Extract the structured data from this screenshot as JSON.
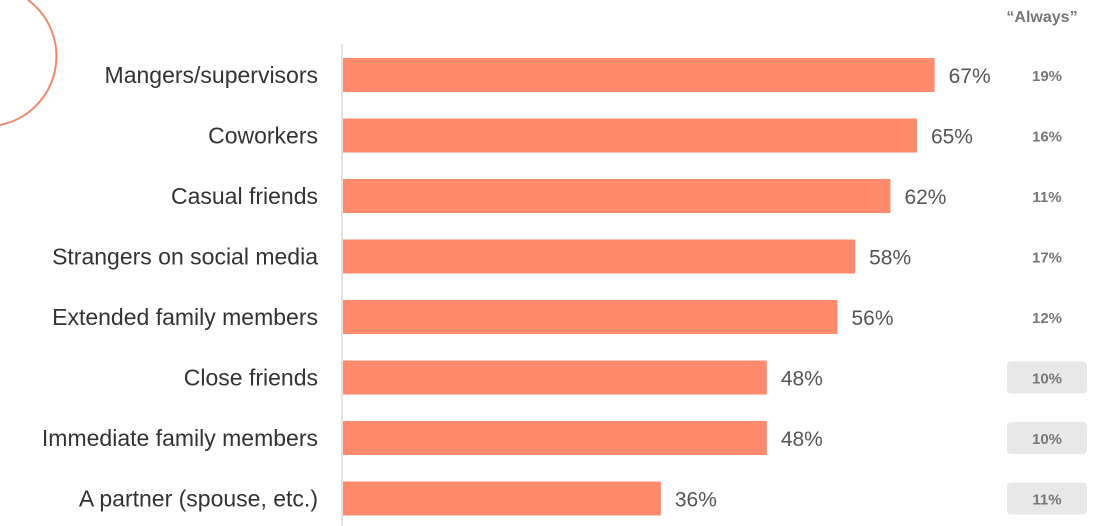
{
  "chart_data": {
    "type": "bar",
    "orientation": "horizontal",
    "categories": [
      "Mangers/supervisors",
      "Coworkers",
      "Casual friends",
      "Strangers on social media",
      "Extended family members",
      "Close friends",
      "Immediate family members",
      "A partner (spouse, etc.)"
    ],
    "values": [
      67,
      65,
      62,
      58,
      56,
      48,
      48,
      36
    ],
    "value_labels": [
      "67%",
      "65%",
      "62%",
      "58%",
      "56%",
      "48%",
      "48%",
      "36%"
    ],
    "xlim": [
      0,
      100
    ],
    "grid": false,
    "bar_color": "#FF8A6C",
    "side_column": {
      "header": "“Always”",
      "values": [
        "19%",
        "16%",
        "11%",
        "17%",
        "12%",
        "10%",
        "10%",
        "11%"
      ],
      "highlighted": [
        false,
        false,
        false,
        false,
        false,
        true,
        true,
        true
      ],
      "highlight_color": "#E8E8E8"
    },
    "decoration_color": "#F08A6C"
  }
}
